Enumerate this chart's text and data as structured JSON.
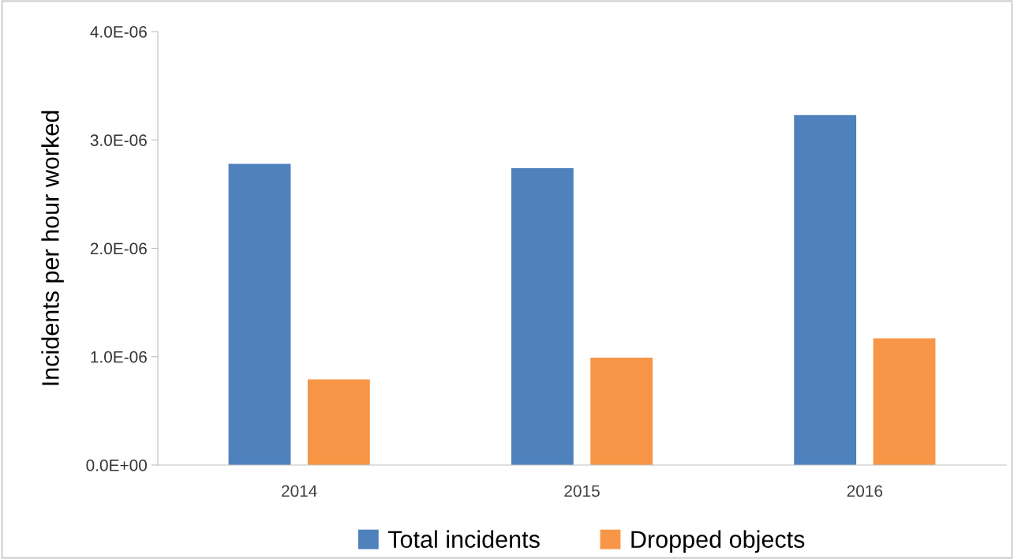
{
  "chart_data": {
    "type": "bar",
    "ylabel": "Incidents per hour worked",
    "categories": [
      "2014",
      "2015",
      "2016"
    ],
    "series": [
      {
        "name": "Total incidents",
        "color": "#4f81bd",
        "values": [
          2.78e-06,
          2.74e-06,
          3.23e-06
        ]
      },
      {
        "name": "Dropped objects",
        "color": "#f79646",
        "values": [
          7.9e-07,
          9.9e-07,
          1.17e-06
        ]
      }
    ],
    "ylim": [
      0,
      4e-06
    ],
    "yticks": [
      {
        "value": 0,
        "label": "0.0E+00"
      },
      {
        "value": 1e-06,
        "label": "1.0E-06"
      },
      {
        "value": 2e-06,
        "label": "2.0E-06"
      },
      {
        "value": 3e-06,
        "label": "3.0E-06"
      },
      {
        "value": 4e-06,
        "label": "4.0E-06"
      }
    ],
    "grid": false,
    "legend": "bottom"
  }
}
